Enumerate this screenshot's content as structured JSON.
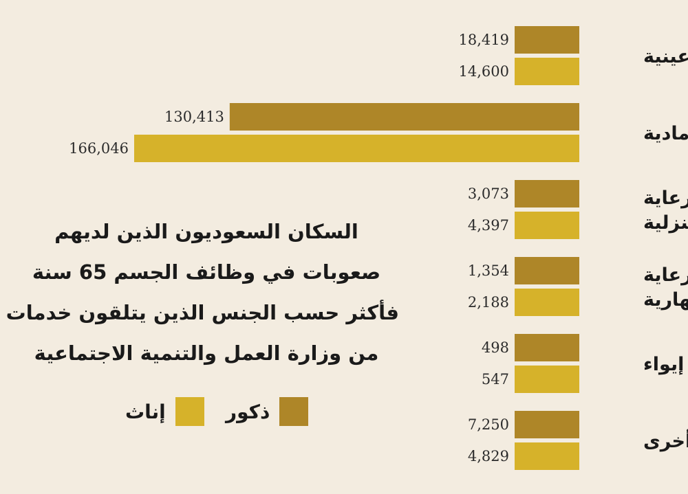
{
  "chart_data": {
    "type": "bar",
    "orientation": "horizontal",
    "title_lines": [
      "السكان السعوديون الذين لديهم",
      "صعوبات في وظائف الجسم  65 سنة",
      "فأكثر حسب الجنس الذين يتلقون خدمات",
      "من وزارة العمل والتنمية الاجتماعية"
    ],
    "categories": [
      [
        "عينية"
      ],
      [
        "مادية"
      ],
      [
        "رعاية",
        "منزلية"
      ],
      [
        "رعاية",
        "نهارية"
      ],
      [
        "إيواء"
      ],
      [
        "أخرى"
      ]
    ],
    "series": [
      {
        "name": "ذكور",
        "color": "#ae8628",
        "values": [
          18419,
          130413,
          3073,
          1354,
          498,
          7250
        ],
        "labels": [
          "18,419",
          "130,413",
          "3,073",
          "1,354",
          "498",
          "7,250"
        ]
      },
      {
        "name": "إناث",
        "color": "#d6b22a",
        "values": [
          14600,
          166046,
          4397,
          2188,
          547,
          4829
        ],
        "labels": [
          "14,600",
          "166,046",
          "4,397",
          "2,188",
          "547",
          "4,829"
        ]
      }
    ],
    "legend_position": "bottom-center",
    "grid": false
  }
}
